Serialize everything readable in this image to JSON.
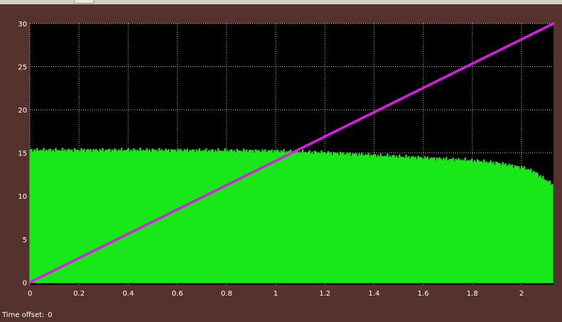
{
  "status": {
    "time_offset_label": "Time offset:",
    "time_offset_value": "0"
  },
  "colors": {
    "frame": "#56322e",
    "plot_background": "#000000",
    "grid": "#ffffff",
    "ramp": "#e018e8",
    "pulses": "#18e818"
  },
  "chart_data": {
    "type": "line",
    "title": "",
    "xlabel": "",
    "ylabel": "",
    "xlim": [
      0,
      2.13
    ],
    "ylim": [
      -0.3,
      30
    ],
    "grid": true,
    "legend": "none",
    "x_ticks": [
      0,
      0.2,
      0.4,
      0.6,
      0.8,
      1,
      1.2,
      1.4,
      1.6,
      1.8,
      2
    ],
    "y_ticks": [
      0,
      5,
      10,
      15,
      20,
      25,
      30
    ],
    "series": [
      {
        "kind": "ramp",
        "color": "#e018e8",
        "x": [
          0,
          2.13
        ],
        "y": [
          0,
          30
        ]
      },
      {
        "kind": "pulse-train",
        "color": "#18e818",
        "pulse_count": 390,
        "baseline": 0,
        "envelope": {
          "x": [
            0,
            0.5,
            1.0,
            1.2,
            1.4,
            1.6,
            1.8,
            1.9,
            2.0,
            2.05,
            2.13
          ],
          "y": [
            15.3,
            15.3,
            15.2,
            15.0,
            14.7,
            14.4,
            14.1,
            13.8,
            13.3,
            12.8,
            11.2
          ]
        }
      }
    ]
  }
}
